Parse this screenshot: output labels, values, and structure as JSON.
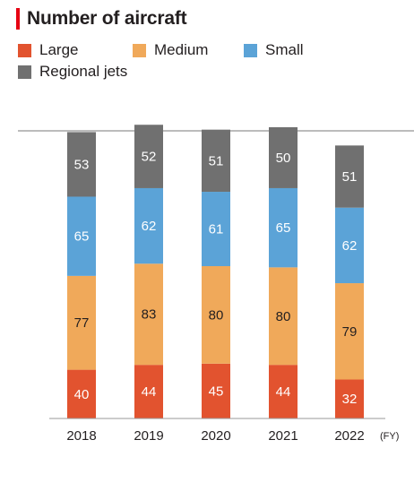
{
  "chart_data": {
    "type": "bar",
    "stacked": true,
    "title": "Number of aircraft",
    "x_unit": "(FY)",
    "categories": [
      "2018",
      "2019",
      "2020",
      "2021",
      "2022"
    ],
    "series": [
      {
        "name": "Large",
        "color": "#e2532f",
        "label_color": "#ffffff",
        "values": [
          40,
          44,
          45,
          44,
          32
        ]
      },
      {
        "name": "Medium",
        "color": "#f0a95a",
        "label_color": "#231f20",
        "values": [
          77,
          83,
          80,
          80,
          79
        ]
      },
      {
        "name": "Small",
        "color": "#5ba3d7",
        "label_color": "#ffffff",
        "values": [
          65,
          62,
          61,
          65,
          62
        ]
      },
      {
        "name": "Regional jets",
        "color": "#707070",
        "label_color": "#ffffff",
        "values": [
          53,
          52,
          51,
          50,
          51
        ]
      }
    ],
    "ylim": [
      0,
      260
    ],
    "grid": false,
    "legend_position": "top-left"
  }
}
